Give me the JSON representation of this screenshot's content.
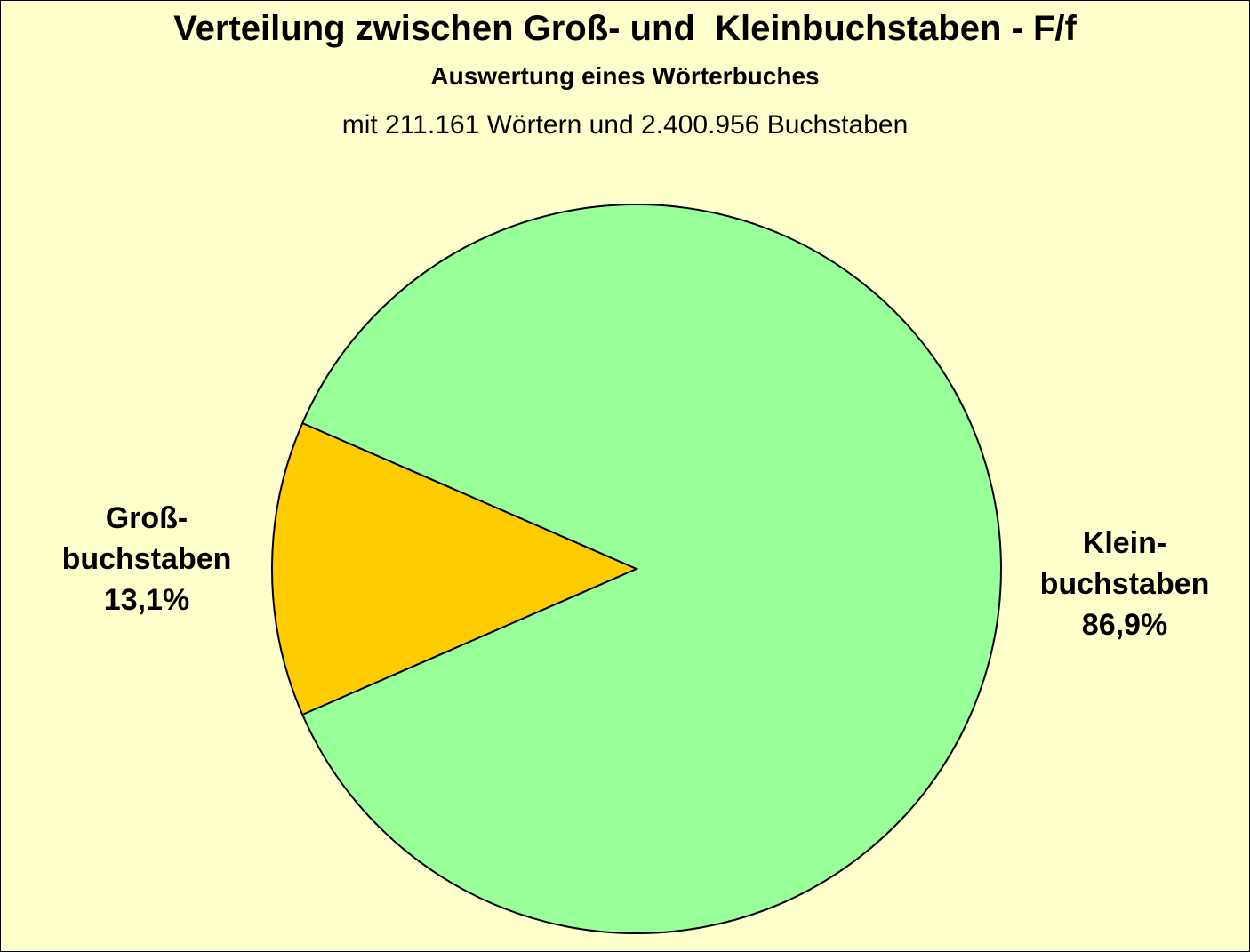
{
  "chart_data": {
    "type": "pie",
    "title": "Verteilung zwischen Groß- und  Kleinbuchstaben - F/f",
    "subtitle": "Auswertung eines Wörterbuches",
    "note": "mit 211.161 Wörtern und 2.400.956 Buchstaben",
    "slices": [
      {
        "label_line1": "Groß-",
        "label_line2": "buchstaben",
        "value": 13.1,
        "value_label": "13,1%",
        "color": "#ffcc00"
      },
      {
        "label_line1": "Klein-",
        "label_line2": "buchstaben",
        "value": 86.9,
        "value_label": "86,9%",
        "color": "#99ff99"
      }
    ],
    "legend": "none"
  },
  "colors": {
    "background": "#ffffcc",
    "outline": "#000000"
  }
}
